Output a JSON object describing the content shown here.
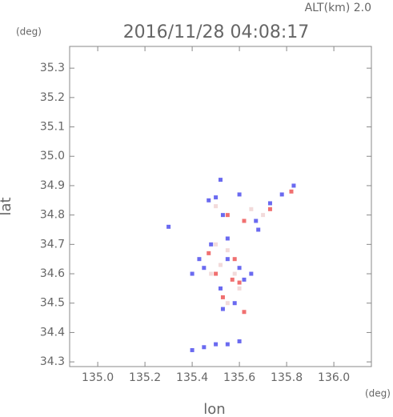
{
  "chart_data": {
    "type": "scatter",
    "title": "2016/11/28 04:08:17",
    "subtitle": "ALT(km) 2.0",
    "xlabel": "lon",
    "ylabel": "lat",
    "xunit": "(deg)",
    "yunit": "(deg)",
    "xlim": [
      134.881,
      136.159
    ],
    "ylim": [
      34.284,
      35.374
    ],
    "xticks": [
      {
        "value": 135,
        "label": "135.0"
      },
      135.2,
      135.4,
      135.6,
      135.8,
      {
        "value": 136,
        "label": "136.0"
      }
    ],
    "yticks": [
      34.3,
      34.4,
      34.5,
      34.6,
      34.7,
      34.8,
      34.9,
      {
        "value": 35,
        "label": "35.0"
      },
      35.1,
      35.2,
      35.3
    ],
    "series": [
      {
        "color": "#6a6af0",
        "x": [
          135.5,
          135.47,
          135.53,
          135.6,
          135.67,
          135.73,
          135.78,
          135.83,
          135.48,
          135.43,
          135.45,
          135.55,
          135.6,
          135.65,
          135.52,
          135.53,
          135.58,
          135.62,
          135.3,
          135.4,
          135.45,
          135.5,
          135.55,
          135.6,
          135.52,
          135.55,
          135.4,
          135.68
        ],
        "y": [
          34.86,
          34.85,
          34.8,
          34.87,
          34.78,
          34.84,
          34.87,
          34.9,
          34.7,
          34.65,
          34.62,
          34.65,
          34.62,
          34.6,
          34.55,
          34.48,
          34.5,
          34.58,
          34.76,
          34.34,
          34.35,
          34.36,
          34.36,
          34.37,
          34.92,
          34.72,
          34.6,
          34.75
        ]
      },
      {
        "color": "#f07070",
        "x": [
          135.55,
          135.62,
          135.73,
          135.82,
          135.5,
          135.57,
          135.6,
          135.53,
          135.62,
          135.58,
          135.47
        ],
        "y": [
          34.8,
          34.78,
          34.82,
          34.88,
          34.6,
          34.58,
          34.57,
          34.52,
          34.47,
          34.65,
          34.67
        ]
      },
      {
        "color": "#f2dada",
        "x": [
          135.5,
          135.55,
          135.58,
          135.52,
          135.48,
          135.55,
          135.6,
          135.65,
          135.7,
          135.5
        ],
        "y": [
          34.7,
          34.68,
          34.6,
          34.63,
          34.6,
          34.5,
          34.55,
          34.82,
          34.8,
          34.83
        ]
      }
    ]
  }
}
